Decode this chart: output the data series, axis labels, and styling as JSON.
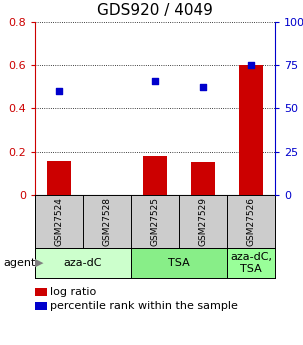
{
  "title": "GDS920 / 4049",
  "samples": [
    "GSM27524",
    "GSM27528",
    "GSM27525",
    "GSM27529",
    "GSM27526"
  ],
  "log_ratios": [
    0.155,
    0.0,
    0.18,
    0.152,
    0.6
  ],
  "percentile_ranks": [
    60.0,
    null,
    66.0,
    62.5,
    75.0
  ],
  "bar_color": "#cc0000",
  "dot_color": "#0000cc",
  "ylim_left": [
    0,
    0.8
  ],
  "ylim_right": [
    0,
    100
  ],
  "yticks_left": [
    0,
    0.2,
    0.4,
    0.6,
    0.8
  ],
  "ytick_labels_left": [
    "0",
    "0.2",
    "0.4",
    "0.6",
    "0.8"
  ],
  "ytick_labels_right": [
    "0",
    "25",
    "50",
    "75",
    "100%"
  ],
  "agent_groups": [
    {
      "label": "aza-dC",
      "span": [
        0,
        2
      ],
      "color": "#ccffcc"
    },
    {
      "label": "TSA",
      "span": [
        2,
        4
      ],
      "color": "#88ee88"
    },
    {
      "label": "aza-dC,\nTSA",
      "span": [
        4,
        5
      ],
      "color": "#99ff99"
    }
  ],
  "legend_items": [
    {
      "color": "#cc0000",
      "label": "log ratio"
    },
    {
      "color": "#0000cc",
      "label": "percentile rank within the sample"
    }
  ],
  "background_color": "#ffffff",
  "sample_label_bg": "#cccccc",
  "bar_width": 0.5,
  "title_fontsize": 11,
  "tick_fontsize": 8,
  "legend_fontsize": 8,
  "agent_fontsize": 8,
  "agent_label": "agent"
}
